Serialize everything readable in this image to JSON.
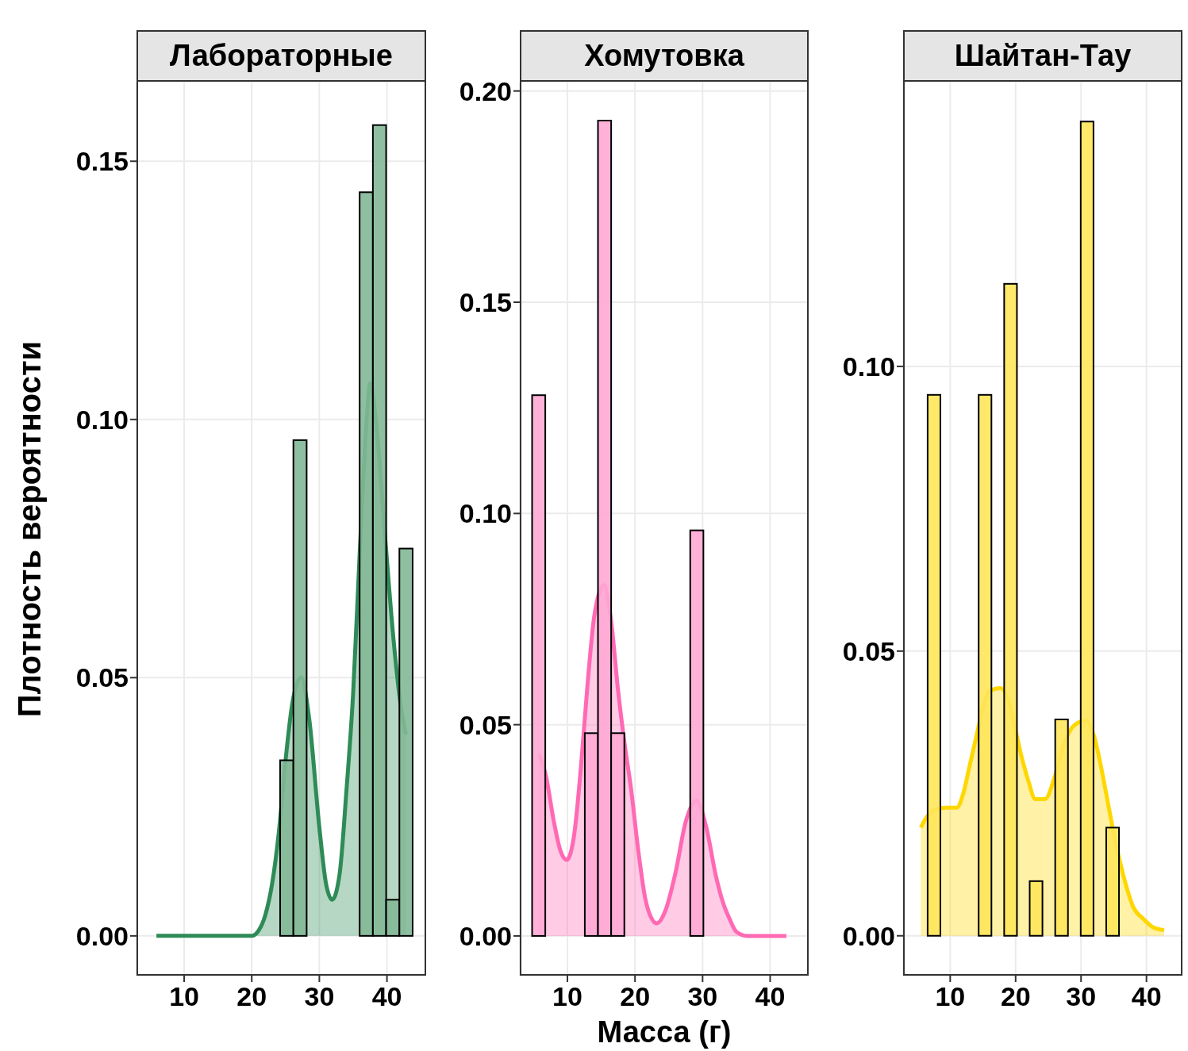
{
  "chart_data": [
    {
      "type": "histogram",
      "title": "Лабораторные",
      "ylabel": "Плотность вероятности",
      "color": "#82b896",
      "grid": true,
      "bins": [
        24.2,
        26.16,
        28.12,
        30.08,
        32.04,
        34.0,
        35.96,
        37.92,
        39.88,
        41.84,
        43.8
      ],
      "values": [
        0.034,
        0.096,
        0,
        0,
        0,
        0,
        0.144,
        0.157,
        0.007,
        0.075
      ],
      "xlim": [
        2.95,
        45.8
      ],
      "xticks": [
        10,
        20,
        30,
        40
      ],
      "ylim": [
        -0.0077,
        0.1654
      ],
      "yticks": [
        {
          "value": 0,
          "label": "0.00"
        },
        {
          "value": 0.05,
          "label": "0.05"
        },
        {
          "value": 0.1,
          "label": "0.10"
        },
        {
          "value": 0.15,
          "label": "0.15"
        }
      ],
      "series": [
        {
          "type": "area",
          "color": "#2e8b57",
          "x": [
            5.9,
            10,
            15,
            20,
            21,
            22,
            23,
            24,
            25,
            26,
            27.3,
            28.5,
            30,
            31,
            31.9,
            33,
            34,
            35,
            36,
            37,
            37.5,
            38.5,
            39.8,
            41,
            42,
            42.8
          ],
          "values": [
            0,
            0,
            0,
            0,
            0.001,
            0.004,
            0.01,
            0.02,
            0.034,
            0.045,
            0.05,
            0.042,
            0.021,
            0.01,
            0.007,
            0.012,
            0.028,
            0.047,
            0.075,
            0.1,
            0.107,
            0.098,
            0.076,
            0.057,
            0.045,
            0.039
          ]
        }
      ]
    },
    {
      "type": "histogram",
      "title": "Хомутовка",
      "xlabel": "Масса (г)",
      "color": "#ffa8d4",
      "grid": true,
      "bins": [
        4.77,
        6.72,
        8.67,
        10.62,
        12.57,
        14.52,
        16.47,
        18.42,
        20.37,
        22.32,
        24.27,
        26.22,
        28.17,
        30.12
      ],
      "values": [
        0.128,
        0,
        0,
        0,
        0.048,
        0.193,
        0.048,
        0,
        0,
        0,
        0,
        0,
        0.096
      ],
      "xlim": [
        2.95,
        45.7
      ],
      "xticks": [
        10,
        20,
        30,
        40
      ],
      "ylim": [
        -0.0094,
        0.2022
      ],
      "yticks": [
        {
          "value": 0,
          "label": "0.00"
        },
        {
          "value": 0.05,
          "label": "0.05"
        },
        {
          "value": 0.1,
          "label": "0.10"
        },
        {
          "value": 0.15,
          "label": "0.15"
        },
        {
          "value": 0.2,
          "label": "0.20"
        }
      ],
      "series": [
        {
          "type": "area",
          "color": "#ff69b4",
          "x": [
            5.8,
            6.8,
            8,
            9,
            9.9,
            11,
            12,
            13,
            14,
            15.4,
            16.5,
            17.5,
            18.5,
            19.4,
            20.5,
            21.5,
            22.5,
            23.2,
            24.5,
            26,
            27.5,
            29.1,
            30.5,
            32,
            33,
            34,
            35,
            36.6,
            38,
            40,
            42.4
          ],
          "values": [
            0.043,
            0.038,
            0.027,
            0.02,
            0.018,
            0.024,
            0.04,
            0.06,
            0.076,
            0.083,
            0.074,
            0.058,
            0.045,
            0.035,
            0.02,
            0.009,
            0.004,
            0.003,
            0.006,
            0.015,
            0.027,
            0.032,
            0.026,
            0.014,
            0.008,
            0.004,
            0.001,
            0,
            0,
            0,
            0
          ]
        }
      ]
    },
    {
      "type": "histogram",
      "title": "Шайтан-Тау",
      "color": "#ffe55a",
      "grid": true,
      "bins": [
        6.55,
        8.5,
        10.45,
        12.4,
        14.35,
        16.3,
        18.25,
        20.2,
        22.15,
        24.1,
        26.05,
        28.0,
        29.95,
        31.9,
        33.85,
        35.8
      ],
      "values": [
        0.095,
        0,
        0,
        0,
        0.095,
        0,
        0.1145,
        0,
        0.0096,
        0,
        0.038,
        0,
        0.143,
        0,
        0.019
      ],
      "xlim": [
        2.8,
        45.5
      ],
      "xticks": [
        10,
        20,
        30,
        40
      ],
      "ylim": [
        -0.007,
        0.15
      ],
      "yticks": [
        {
          "value": 0,
          "label": "0.00"
        },
        {
          "value": 0.05,
          "label": "0.05"
        },
        {
          "value": 0.1,
          "label": "0.10"
        }
      ],
      "series": [
        {
          "type": "area",
          "color": "#ffd700",
          "x": [
            5.5,
            6.5,
            7.5,
            9.3,
            11,
            12,
            13,
            14,
            15,
            16,
            17.7,
            19,
            20,
            21,
            22,
            23,
            24.5,
            26,
            27.5,
            29,
            30.7,
            32,
            33,
            34,
            35,
            36.7,
            38,
            39.5,
            41,
            42.7
          ],
          "values": [
            0.019,
            0.021,
            0.022,
            0.0225,
            0.0225,
            0.025,
            0.03,
            0.035,
            0.04,
            0.043,
            0.0435,
            0.041,
            0.036,
            0.031,
            0.027,
            0.024,
            0.024,
            0.028,
            0.034,
            0.037,
            0.0378,
            0.035,
            0.03,
            0.024,
            0.018,
            0.0096,
            0.005,
            0.003,
            0.0015,
            0.001
          ]
        }
      ]
    }
  ]
}
